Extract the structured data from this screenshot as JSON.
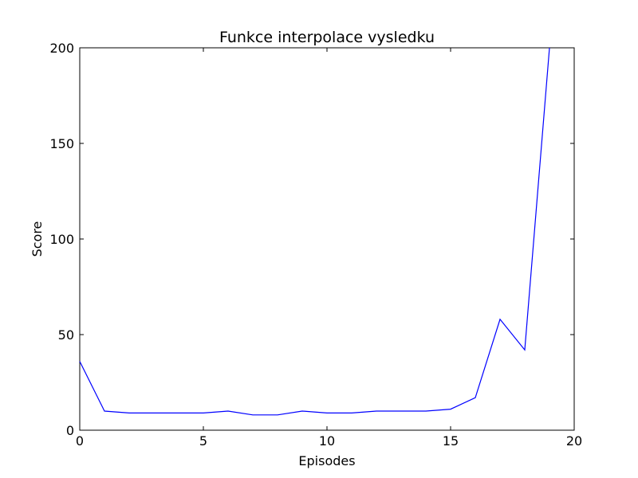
{
  "chart_data": {
    "type": "line",
    "title": "Funkce interpolace vysledku",
    "xlabel": "Episodes",
    "ylabel": "Score",
    "xlim": [
      0,
      20
    ],
    "ylim": [
      0,
      200
    ],
    "xticks": [
      0,
      5,
      10,
      15,
      20
    ],
    "yticks": [
      0,
      50,
      100,
      150,
      200
    ],
    "grid": false,
    "series": [
      {
        "color": "#0000ff",
        "x": [
          0,
          1,
          2,
          3,
          4,
          5,
          6,
          7,
          8,
          9,
          10,
          11,
          12,
          13,
          14,
          15,
          16,
          17,
          18,
          19
        ],
        "y": [
          36,
          10,
          9,
          9,
          9,
          9,
          10,
          8,
          8,
          10,
          9,
          9,
          10,
          10,
          10,
          11,
          17,
          58,
          42,
          200
        ]
      }
    ]
  }
}
